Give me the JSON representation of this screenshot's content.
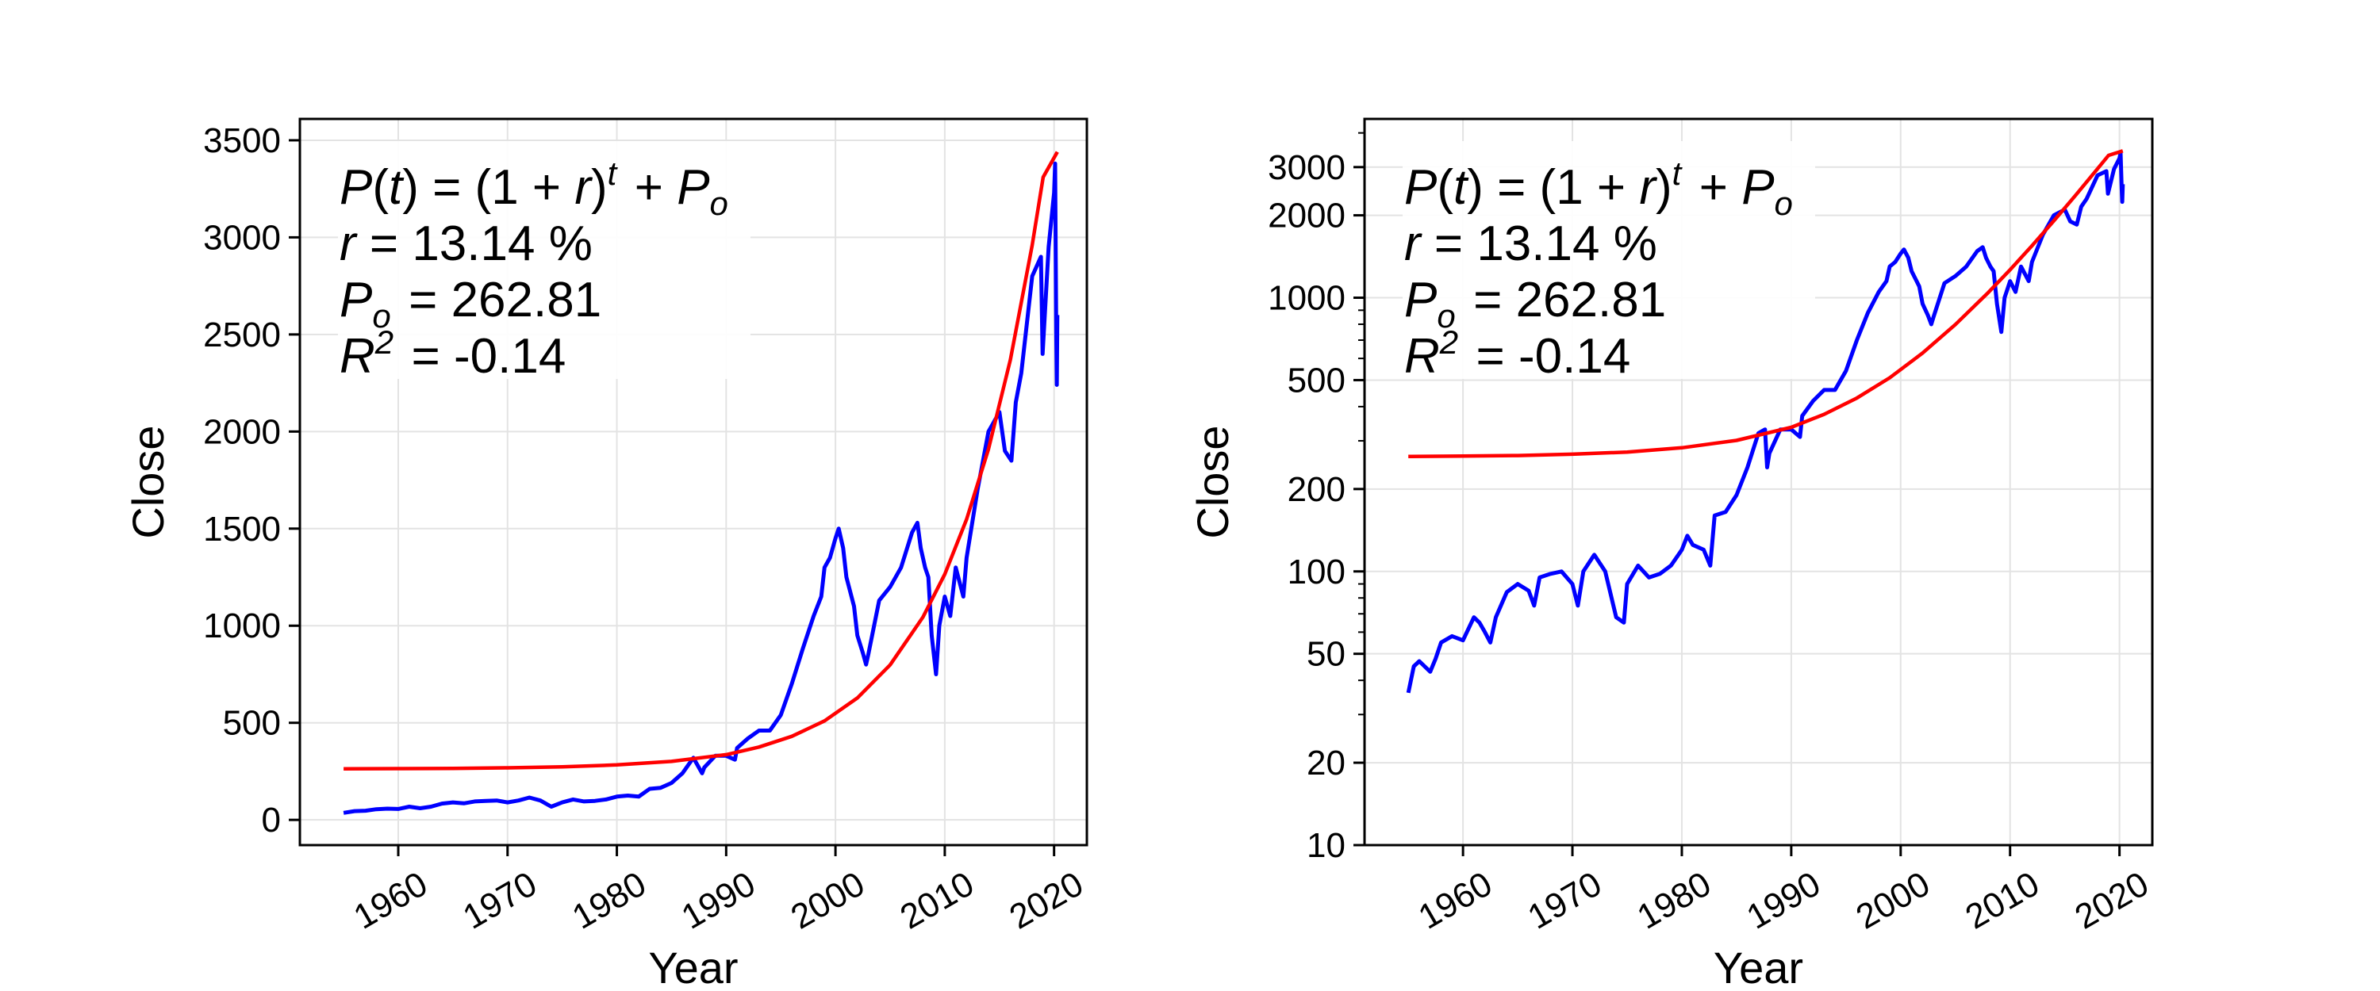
{
  "colors": {
    "data_series": "#0000ff",
    "fit_curve": "#ff0000",
    "grid": "#e3e3e3"
  },
  "chart_data": [
    {
      "type": "line",
      "xlabel": "Year",
      "ylabel": "Close",
      "yscale": "linear",
      "xlim": [
        1951,
        2023
      ],
      "ylim": [
        -130,
        3610
      ],
      "xticks": [
        "1960",
        "1970",
        "1980",
        "1990",
        "2000",
        "2010",
        "2020"
      ],
      "yticks": [
        "0",
        "500",
        "1000",
        "1500",
        "2000",
        "2500",
        "3000",
        "3500"
      ],
      "grid": true,
      "annotation": {
        "line1": "P(t) = (1 + r)^t + P_o",
        "line2": "r = 13.14 %",
        "line3": "P_o = 262.81",
        "line4": "R^2 = -0.14"
      },
      "series": [
        {
          "color": "#0000ff",
          "x": [
            1955.0,
            1956.0,
            1957.0,
            1958.0,
            1959.0,
            1960.0,
            1961.0,
            1962.0,
            1963.0,
            1964.0,
            1965.0,
            1966.0,
            1967.0,
            1968.0,
            1969.0,
            1970.0,
            1971.0,
            1972.0,
            1973.0,
            1974.0,
            1975.0,
            1976.0,
            1977.0,
            1978.0,
            1979.0,
            1980.0,
            1981.0,
            1982.0,
            1983.0,
            1984.0,
            1985.0,
            1986.0,
            1987.0,
            1987.8,
            1988.0,
            1989.0,
            1990.0,
            1990.8,
            1991.0,
            1992.0,
            1993.0,
            1994.0,
            1995.0,
            1996.0,
            1997.0,
            1998.0,
            1998.7,
            1999.0,
            1999.5,
            2000.0,
            2000.3,
            2000.7,
            2001.0,
            2001.7,
            2002.0,
            2002.5,
            2002.8,
            2003.0,
            2004.0,
            2005.0,
            2006.0,
            2007.0,
            2007.5,
            2007.8,
            2008.2,
            2008.5,
            2008.8,
            2009.2,
            2009.5,
            2010.0,
            2010.5,
            2011.0,
            2011.7,
            2012.0,
            2013.0,
            2014.0,
            2015.0,
            2015.5,
            2016.1,
            2016.5,
            2017.0,
            2018.0,
            2018.8,
            2018.95,
            2019.5,
            2020.0,
            2020.1,
            2020.2,
            2020.25,
            2020.3
          ],
          "y": [
            36,
            45,
            47,
            55,
            58,
            56,
            68,
            60,
            68,
            84,
            90,
            85,
            95,
            98,
            100,
            90,
            100,
            115,
            100,
            68,
            90,
            105,
            95,
            98,
            105,
            120,
            125,
            120,
            160,
            165,
            190,
            240,
            320,
            240,
            270,
            330,
            330,
            310,
            370,
            420,
            460,
            460,
            540,
            700,
            880,
            1050,
            1150,
            1300,
            1350,
            1450,
            1500,
            1400,
            1250,
            1100,
            950,
            860,
            800,
            850,
            1130,
            1200,
            1300,
            1480,
            1530,
            1400,
            1300,
            1250,
            950,
            750,
            1000,
            1150,
            1050,
            1300,
            1150,
            1350,
            1700,
            2000,
            2100,
            1900,
            1850,
            2150,
            2300,
            2800,
            2900,
            2400,
            2950,
            3230,
            3380,
            2500,
            2240,
            2600
          ]
        },
        {
          "color": "#ff0000",
          "x": [
            1955,
            1960,
            1965,
            1970,
            1975,
            1980,
            1985,
            1990,
            1993,
            1996,
            1999,
            2002,
            2005,
            2008,
            2010,
            2012,
            2014,
            2016,
            2018,
            2019,
            2020.3
          ],
          "y": [
            263,
            264,
            265,
            268,
            273,
            283,
            301,
            336,
            375,
            430,
            510,
            628,
            798,
            1044,
            1265,
            1548,
            1910,
            2370,
            2960,
            3310,
            3440
          ]
        }
      ]
    },
    {
      "type": "line",
      "xlabel": "Year",
      "ylabel": "Close",
      "yscale": "log",
      "xlim": [
        1951,
        2023
      ],
      "ylim": [
        10,
        4500
      ],
      "xticks": [
        "1960",
        "1970",
        "1980",
        "1990",
        "2000",
        "2010",
        "2020"
      ],
      "yticks": [
        "10",
        "20",
        "50",
        "100",
        "200",
        "500",
        "1000",
        "2000",
        "3000"
      ],
      "grid": true,
      "annotation": {
        "line1": "P(t) = (1 + r)^t + P_o",
        "line2": "r = 13.14 %",
        "line3": "P_o = 262.81",
        "line4": "R^2 = -0.14"
      },
      "series": [
        {
          "color": "#0000ff",
          "x": [
            1955.0,
            1955.5,
            1956.0,
            1957.0,
            1957.5,
            1958.0,
            1959.0,
            1960.0,
            1961.0,
            1961.5,
            1962.0,
            1962.5,
            1963.0,
            1964.0,
            1965.0,
            1966.0,
            1966.5,
            1967.0,
            1968.0,
            1969.0,
            1970.0,
            1970.5,
            1971.0,
            1972.0,
            1973.0,
            1974.0,
            1974.7,
            1975.0,
            1976.0,
            1977.0,
            1978.0,
            1979.0,
            1980.0,
            1980.5,
            1981.0,
            1982.0,
            1982.6,
            1983.0,
            1984.0,
            1985.0,
            1986.0,
            1987.0,
            1987.6,
            1987.8,
            1988.0,
            1989.0,
            1990.0,
            1990.8,
            1991.0,
            1992.0,
            1993.0,
            1994.0,
            1995.0,
            1996.0,
            1997.0,
            1998.0,
            1998.7,
            1999.0,
            1999.5,
            2000.0,
            2000.3,
            2000.7,
            2001.0,
            2001.7,
            2002.0,
            2002.5,
            2002.8,
            2003.0,
            2004.0,
            2005.0,
            2006.0,
            2007.0,
            2007.5,
            2007.8,
            2008.2,
            2008.5,
            2008.8,
            2009.2,
            2009.5,
            2010.0,
            2010.5,
            2011.0,
            2011.7,
            2012.0,
            2013.0,
            2014.0,
            2015.0,
            2015.5,
            2016.1,
            2016.5,
            2017.0,
            2018.0,
            2018.8,
            2018.95,
            2019.5,
            2020.0,
            2020.1,
            2020.2,
            2020.25,
            2020.3
          ],
          "y": [
            36,
            45,
            47,
            43,
            48,
            55,
            58,
            56,
            68,
            65,
            60,
            55,
            68,
            84,
            90,
            85,
            75,
            95,
            98,
            100,
            90,
            75,
            100,
            115,
            100,
            68,
            65,
            90,
            105,
            95,
            98,
            105,
            120,
            135,
            125,
            120,
            105,
            160,
            165,
            190,
            240,
            320,
            330,
            240,
            270,
            330,
            330,
            310,
            370,
            420,
            460,
            460,
            540,
            700,
            880,
            1050,
            1150,
            1300,
            1350,
            1450,
            1500,
            1400,
            1250,
            1100,
            950,
            860,
            800,
            850,
            1130,
            1200,
            1300,
            1480,
            1530,
            1400,
            1300,
            1250,
            950,
            750,
            1000,
            1150,
            1050,
            1300,
            1150,
            1350,
            1700,
            2000,
            2100,
            1900,
            1850,
            2150,
            2300,
            2800,
            2900,
            2400,
            2950,
            3230,
            3380,
            2500,
            2240,
            2600
          ]
        },
        {
          "color": "#ff0000",
          "x": [
            1955,
            1960,
            1965,
            1970,
            1975,
            1980,
            1985,
            1990,
            1993,
            1996,
            1999,
            2002,
            2005,
            2008,
            2010,
            2012,
            2014,
            2016,
            2018,
            2019,
            2020.3
          ],
          "y": [
            263,
            264,
            265,
            268,
            273,
            283,
            301,
            336,
            375,
            430,
            510,
            628,
            798,
            1044,
            1265,
            1548,
            1910,
            2370,
            2960,
            3310,
            3440
          ]
        }
      ]
    }
  ]
}
